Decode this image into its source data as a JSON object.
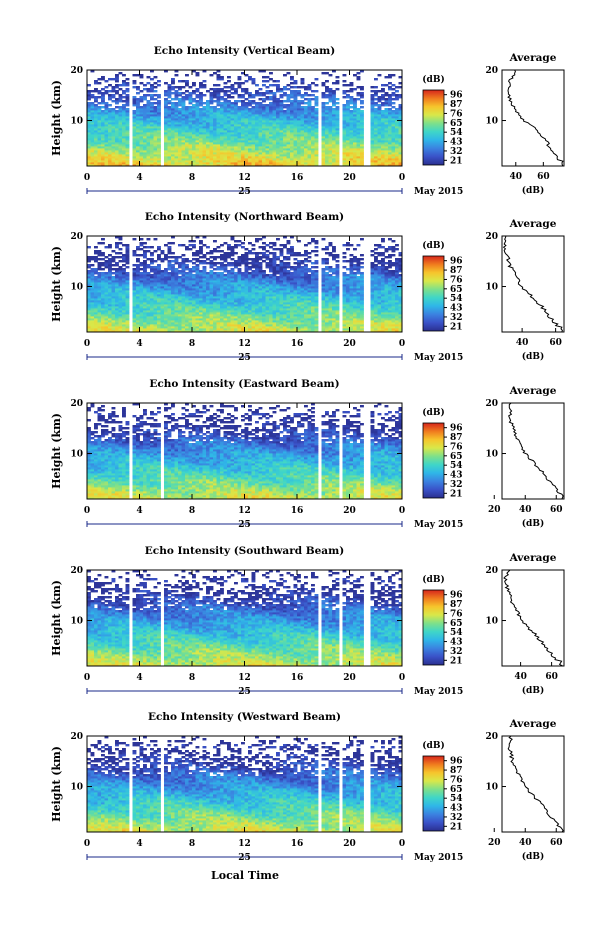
{
  "shared": {
    "xlabel": "Local Time",
    "date_label": "25",
    "month_label": "May 2015",
    "x_ticks": [
      "0",
      "4",
      "8",
      "12",
      "16",
      "20",
      "0"
    ],
    "y_label": "Height (km)",
    "y_ticks": [
      "20",
      "10"
    ],
    "colorbar_unit": "(dB)",
    "avg_title": "Average",
    "avg_unit": "(dB)"
  },
  "colors": {
    "colormap": [
      "#2a2f8f",
      "#3a52c8",
      "#3b82e0",
      "#2fb6e8",
      "#3fd6c8",
      "#7ee08a",
      "#d8e84a",
      "#f6c52c",
      "#f07a1e",
      "#d7261c"
    ]
  },
  "chart_data": [
    {
      "type": "heatmap",
      "title": "Echo Intensity (Vertical Beam)",
      "ylabel": "Height (km)",
      "xlabel": "",
      "x_range_hours": [
        0,
        24
      ],
      "y_range_km": [
        1,
        20
      ],
      "colorbar": {
        "label": "(dB)",
        "ticks": [
          "96",
          "87",
          "76",
          "65",
          "54",
          "43",
          "32",
          "21"
        ],
        "range": [
          21,
          96
        ]
      },
      "data_gaps_hours": [
        [
          3.2,
          3.55
        ],
        [
          5.6,
          5.8
        ],
        [
          17.6,
          17.85
        ],
        [
          19.2,
          19.4
        ],
        [
          21.2,
          21.5
        ]
      ],
      "average_profile": {
        "x_ticks": [
          "40",
          "60"
        ],
        "xlim": [
          30,
          75
        ],
        "ylim_km": [
          1,
          20
        ],
        "height_km": [
          2,
          4,
          6,
          8,
          10,
          12,
          14,
          16,
          18,
          20
        ],
        "value_db": [
          72,
          66,
          62,
          56,
          46,
          40,
          36,
          34,
          36,
          40
        ]
      }
    },
    {
      "type": "heatmap",
      "title": "Echo Intensity (Northward Beam)",
      "ylabel": "Height (km)",
      "xlabel": "",
      "x_range_hours": [
        0,
        24
      ],
      "y_range_km": [
        1,
        20
      ],
      "colorbar": {
        "label": "(dB)",
        "ticks": [
          "96",
          "87",
          "76",
          "65",
          "54",
          "43",
          "32",
          "21"
        ],
        "range": [
          21,
          96
        ]
      },
      "data_gaps_hours": [
        [
          3.2,
          3.55
        ],
        [
          17.6,
          17.85
        ],
        [
          19.2,
          19.4
        ],
        [
          21.2,
          21.5
        ]
      ],
      "average_profile": {
        "x_ticks": [
          "40",
          "60"
        ],
        "xlim": [
          28,
          65
        ],
        "ylim_km": [
          1,
          20
        ],
        "height_km": [
          2,
          4,
          6,
          8,
          10,
          12,
          14,
          16,
          18,
          20
        ],
        "value_db": [
          62,
          56,
          52,
          46,
          40,
          36,
          33,
          31,
          30,
          30
        ]
      }
    },
    {
      "type": "heatmap",
      "title": "Echo Intensity (Eastward Beam)",
      "ylabel": "Height (km)",
      "xlabel": "",
      "x_range_hours": [
        0,
        24
      ],
      "y_range_km": [
        1,
        20
      ],
      "colorbar": {
        "label": "(dB)",
        "ticks": [
          "96",
          "87",
          "76",
          "65",
          "54",
          "43",
          "32",
          "21"
        ],
        "range": [
          21,
          96
        ]
      },
      "data_gaps_hours": [
        [
          3.2,
          3.55
        ],
        [
          5.6,
          5.8
        ],
        [
          17.6,
          17.85
        ],
        [
          19.2,
          19.4
        ],
        [
          21.2,
          21.5
        ]
      ],
      "average_profile": {
        "x_ticks": [
          "20",
          "40",
          "60"
        ],
        "xlim": [
          25,
          65
        ],
        "ylim_km": [
          1,
          20
        ],
        "height_km": [
          2,
          4,
          6,
          8,
          10,
          12,
          14,
          16,
          18,
          20
        ],
        "value_db": [
          62,
          57,
          52,
          46,
          40,
          36,
          33,
          31,
          30,
          31
        ]
      }
    },
    {
      "type": "heatmap",
      "title": "Echo Intensity (Southward Beam)",
      "ylabel": "Height (km)",
      "xlabel": "",
      "x_range_hours": [
        0,
        24
      ],
      "y_range_km": [
        1,
        20
      ],
      "colorbar": {
        "label": "(dB)",
        "ticks": [
          "96",
          "87",
          "76",
          "65",
          "54",
          "43",
          "32",
          "21"
        ],
        "range": [
          21,
          96
        ]
      },
      "data_gaps_hours": [
        [
          3.2,
          3.55
        ],
        [
          5.6,
          5.8
        ],
        [
          17.6,
          17.85
        ],
        [
          19.2,
          19.4
        ],
        [
          21.2,
          21.5
        ]
      ],
      "average_profile": {
        "x_ticks": [
          "40",
          "60"
        ],
        "xlim": [
          28,
          68
        ],
        "ylim_km": [
          1,
          20
        ],
        "height_km": [
          2,
          4,
          6,
          8,
          10,
          12,
          14,
          16,
          18,
          20
        ],
        "value_db": [
          64,
          58,
          53,
          47,
          41,
          37,
          34,
          32,
          30,
          32
        ]
      }
    },
    {
      "type": "heatmap",
      "title": "Echo Intensity (Westward Beam)",
      "ylabel": "Height (km)",
      "xlabel": "Local Time",
      "x_range_hours": [
        0,
        24
      ],
      "y_range_km": [
        1,
        20
      ],
      "colorbar": {
        "label": "(dB)",
        "ticks": [
          "96",
          "87",
          "76",
          "65",
          "54",
          "43",
          "32",
          "21"
        ],
        "range": [
          21,
          96
        ]
      },
      "data_gaps_hours": [
        [
          3.2,
          3.55
        ],
        [
          5.6,
          5.8
        ],
        [
          17.6,
          17.85
        ],
        [
          19.2,
          19.4
        ],
        [
          21.2,
          21.5
        ]
      ],
      "average_profile": {
        "x_ticks": [
          "20",
          "40",
          "60"
        ],
        "xlim": [
          25,
          65
        ],
        "ylim_km": [
          1,
          20
        ],
        "height_km": [
          2,
          4,
          6,
          8,
          10,
          12,
          14,
          16,
          18,
          20
        ],
        "value_db": [
          62,
          57,
          52,
          46,
          40,
          36,
          33,
          31,
          30,
          31
        ]
      }
    }
  ]
}
